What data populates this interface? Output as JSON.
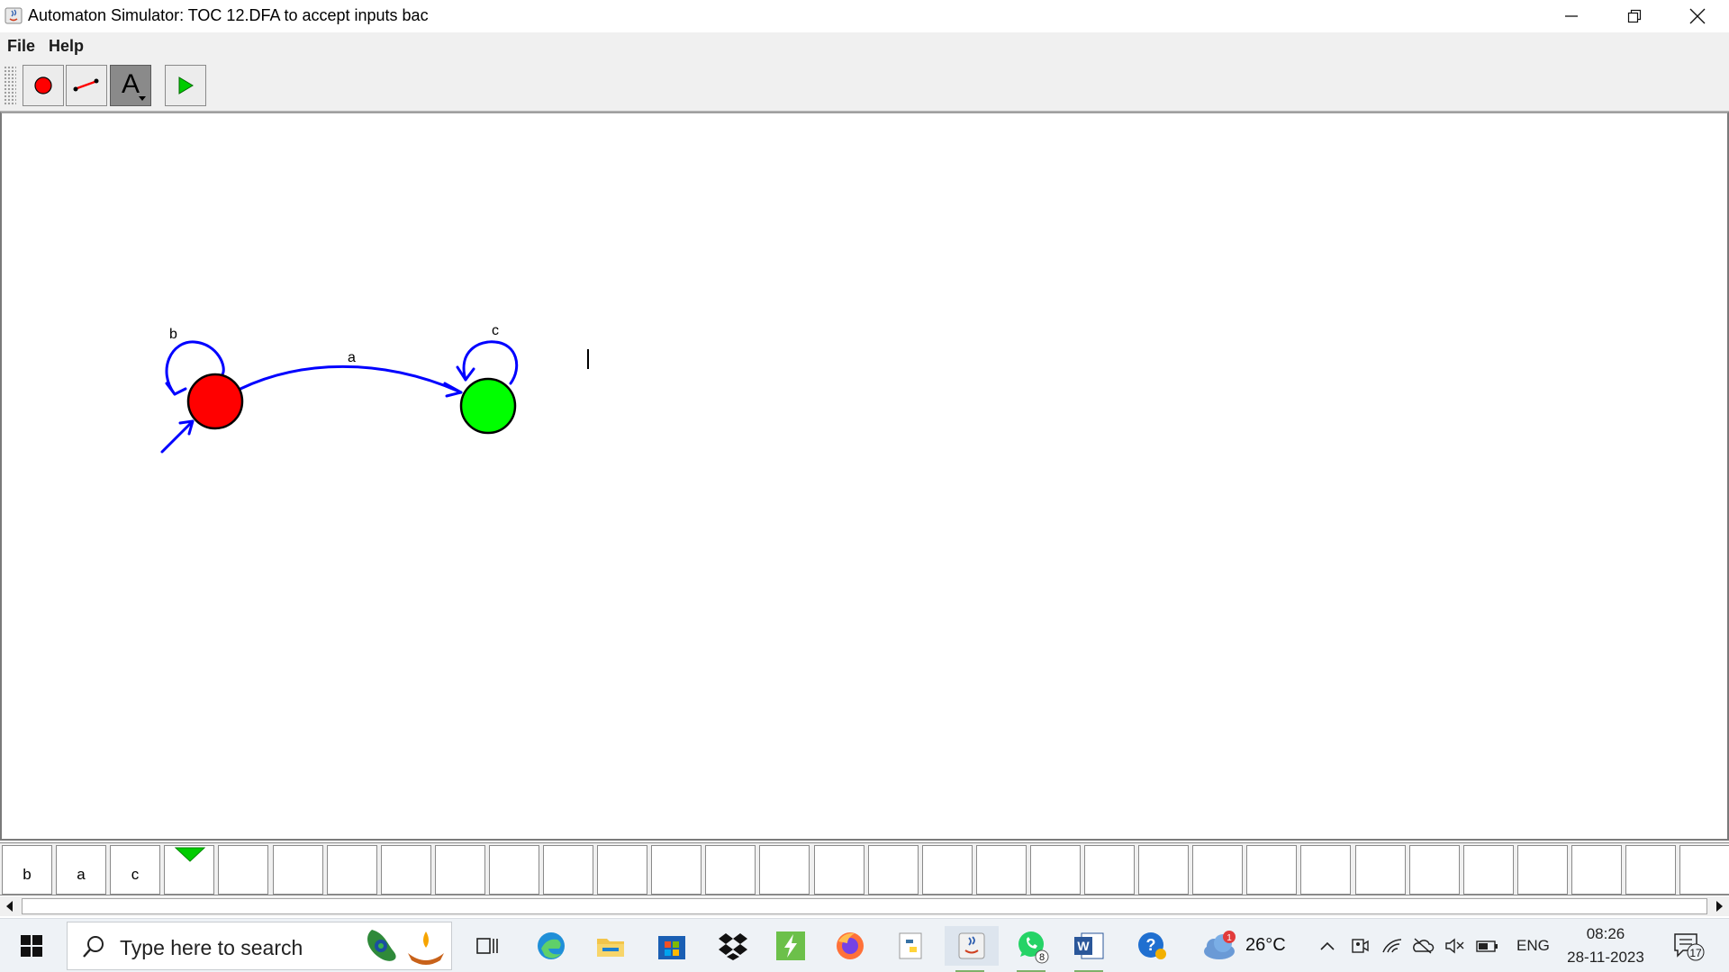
{
  "window": {
    "title": "Automaton Simulator: TOC 12.DFA to accept inputs bac",
    "controls": [
      "minimize",
      "maximize",
      "close"
    ]
  },
  "menu": {
    "file": "File",
    "help": "Help"
  },
  "toolbar": {
    "tools": [
      {
        "name": "state-tool",
        "icon": "red-circle-icon"
      },
      {
        "name": "transition-tool",
        "icon": "arrow-line-icon"
      },
      {
        "name": "label-tool",
        "icon": "letter-a-icon",
        "glyph": "A",
        "selected": true
      },
      {
        "name": "run-tool",
        "icon": "green-play-icon"
      }
    ]
  },
  "automaton": {
    "states": [
      {
        "id": "q0",
        "initial": true,
        "accepting": false,
        "color": "#ff0000"
      },
      {
        "id": "q1",
        "initial": false,
        "accepting": true,
        "color": "#00ff00"
      }
    ],
    "transitions": [
      {
        "from": "q0",
        "to": "q0",
        "label": "b"
      },
      {
        "from": "q0",
        "to": "q1",
        "label": "a"
      },
      {
        "from": "q1",
        "to": "q1",
        "label": "c"
      }
    ],
    "edge_color": "#0000ff"
  },
  "tape": {
    "cells": [
      "b",
      "a",
      "c",
      "",
      "",
      "",
      "",
      "",
      "",
      "",
      "",
      "",
      "",
      "",
      "",
      "",
      "",
      "",
      "",
      "",
      "",
      "",
      "",
      "",
      "",
      "",
      "",
      "",
      "",
      "",
      "",
      ""
    ],
    "head_index": 3,
    "head_color": "#00c000"
  },
  "taskbar": {
    "search_placeholder": "Type here to search",
    "apps": [
      "task-view",
      "edge",
      "file-explorer",
      "microsoft-store",
      "dropbox",
      "sumatra",
      "firefox",
      "python-launcher",
      "java",
      "whatsapp",
      "word",
      "help"
    ],
    "whatsapp_badge": "8",
    "weather_badge": "1",
    "weather_temp": "26°C",
    "language": "ENG",
    "time": "08:26",
    "date": "28-11-2023",
    "notification_count": "17"
  }
}
